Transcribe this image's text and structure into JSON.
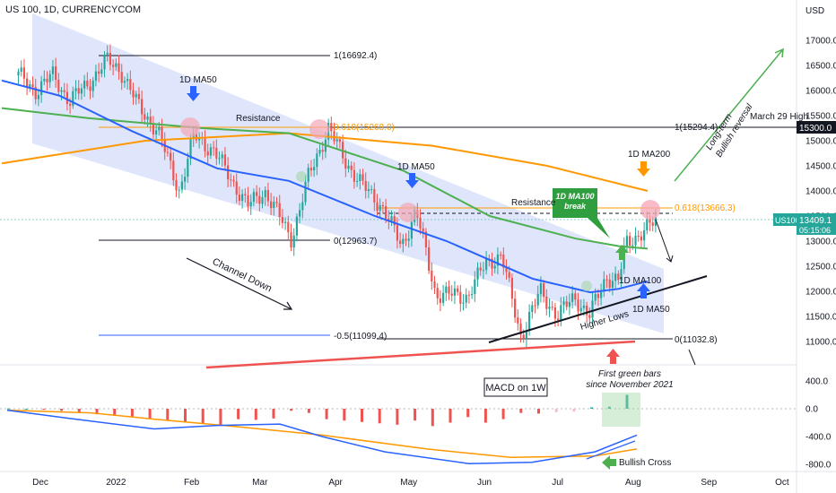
{
  "header": {
    "title": "US 100, 1D, CURRENCYCOM"
  },
  "axis": {
    "currency": "USD",
    "price_ticks": [
      "17000.0",
      "16500.0",
      "16000.0",
      "15500.0",
      "15000.0",
      "14500.0",
      "14000.0",
      "13500.0",
      "13000.0",
      "12500.0",
      "12000.0",
      "11500.0",
      "11000.0"
    ],
    "macd_ticks": [
      "400.0",
      "0.0",
      "-400.0",
      "-800.0"
    ],
    "x_ticks": [
      "Dec",
      "2022",
      "Feb",
      "Mar",
      "Apr",
      "May",
      "Jun",
      "Jul",
      "Aug",
      "Sep",
      "Oct"
    ]
  },
  "labels": {
    "symbol_tag": "US100",
    "last_price": "13409.1",
    "countdown": "05:15:06",
    "level_tag": "15300.0",
    "march_high": "March 29 High",
    "fib_1a": "1(16692.4)",
    "fib_0618a": "0.618(15268.0)",
    "fib_1b": "1(15294.4)",
    "fib_0a": "0(12963.7)",
    "fib_0618b": "0.618(13666.3)",
    "fib_neg05": "-0.5(11099.4)",
    "fib_0b": "0(11032.8)",
    "ma50_a": "1D MA50",
    "ma50_b": "1D MA50",
    "ma50_c": "1D MA50",
    "ma200": "1D MA200",
    "ma100": "1D MA100",
    "resistance_a": "Resistance",
    "resistance_b": "Resistance",
    "channel": "Channel Down",
    "higher_lows": "Higher Lows",
    "ma100_break_1": "1D MA100",
    "ma100_break_2": "break",
    "reversal_1": "Long-term",
    "reversal_2": "Bullish reversal",
    "macd": "MACD on 1W",
    "green_1": "First green bars",
    "green_2": "since November 2021",
    "bullish_cross": "Bullish Cross"
  },
  "colors": {
    "up": "#26a69a",
    "down": "#ef5350",
    "ma50": "#2962ff",
    "ma100": "#4caf50",
    "ma200": "#ff9800",
    "channel": "#d9e2fb",
    "macd_line": "#2962ff",
    "signal_line": "#ff9800"
  },
  "chart_data": {
    "type": "candlestick",
    "y_range": [
      10600,
      17500
    ],
    "anchors": [
      {
        "date": "2021-11-22",
        "close": 16300
      },
      {
        "date": "2021-11-29",
        "close": 16000
      },
      {
        "date": "2021-12-06",
        "close": 16300
      },
      {
        "date": "2021-12-13",
        "close": 15800
      },
      {
        "date": "2021-12-20",
        "close": 16100
      },
      {
        "date": "2021-12-28",
        "close": 16600
      },
      {
        "date": "2022-01-03",
        "close": 16400
      },
      {
        "date": "2022-01-10",
        "close": 15700
      },
      {
        "date": "2022-01-18",
        "close": 15200
      },
      {
        "date": "2022-01-27",
        "close": 14000
      },
      {
        "date": "2022-02-02",
        "close": 15100
      },
      {
        "date": "2022-02-10",
        "close": 14800
      },
      {
        "date": "2022-02-24",
        "close": 13700
      },
      {
        "date": "2022-03-03",
        "close": 14000
      },
      {
        "date": "2022-03-14",
        "close": 13050
      },
      {
        "date": "2022-03-21",
        "close": 14300
      },
      {
        "date": "2022-03-29",
        "close": 15250
      },
      {
        "date": "2022-04-05",
        "close": 14600
      },
      {
        "date": "2022-04-12",
        "close": 14100
      },
      {
        "date": "2022-04-20",
        "close": 13700
      },
      {
        "date": "2022-04-28",
        "close": 12900
      },
      {
        "date": "2022-05-04",
        "close": 13600
      },
      {
        "date": "2022-05-12",
        "close": 11950
      },
      {
        "date": "2022-05-25",
        "close": 11900
      },
      {
        "date": "2022-06-02",
        "close": 12600
      },
      {
        "date": "2022-06-08",
        "close": 12700
      },
      {
        "date": "2022-06-16",
        "close": 11100
      },
      {
        "date": "2022-06-24",
        "close": 12000
      },
      {
        "date": "2022-07-01",
        "close": 11500
      },
      {
        "date": "2022-07-08",
        "close": 11900
      },
      {
        "date": "2022-07-14",
        "close": 11500
      },
      {
        "date": "2022-07-21",
        "close": 12300
      },
      {
        "date": "2022-07-26",
        "close": 12200
      },
      {
        "date": "2022-07-29",
        "close": 12950
      },
      {
        "date": "2022-08-05",
        "close": 13200
      },
      {
        "date": "2022-08-11",
        "close": 13409
      }
    ],
    "ma50": [
      [
        0,
        16200
      ],
      [
        20,
        15900
      ],
      [
        45,
        15200
      ],
      [
        75,
        14450
      ],
      [
        100,
        14200
      ],
      [
        130,
        13500
      ],
      [
        155,
        13000
      ],
      [
        185,
        12250
      ],
      [
        205,
        11980
      ],
      [
        215,
        12050
      ],
      [
        225,
        12200
      ]
    ],
    "ma100": [
      [
        0,
        15650
      ],
      [
        30,
        15450
      ],
      [
        70,
        15250
      ],
      [
        100,
        15150
      ],
      [
        140,
        14400
      ],
      [
        170,
        13500
      ],
      [
        200,
        13050
      ],
      [
        215,
        12900
      ],
      [
        225,
        12850
      ]
    ],
    "ma200": [
      [
        0,
        14550
      ],
      [
        50,
        15000
      ],
      [
        100,
        15150
      ],
      [
        150,
        14900
      ],
      [
        190,
        14500
      ],
      [
        225,
        14000
      ]
    ],
    "macd_histogram": [
      5,
      0,
      -15,
      -30,
      -55,
      -80,
      -100,
      -120,
      -140,
      -170,
      -200,
      -220,
      -240,
      -150,
      -160,
      -140,
      -30,
      -60,
      -150,
      -170,
      -190,
      -210,
      -230,
      -170,
      -250,
      -200,
      -120,
      -200,
      -150,
      -60,
      -70,
      -50,
      -40,
      20,
      30,
      200
    ],
    "macd_line": [
      [
        0,
        -20
      ],
      [
        6,
        -140
      ],
      [
        14,
        -290
      ],
      [
        20,
        -240
      ],
      [
        26,
        -220
      ],
      [
        30,
        -400
      ],
      [
        36,
        -620
      ],
      [
        44,
        -790
      ],
      [
        50,
        -770
      ],
      [
        56,
        -620
      ],
      [
        60,
        -380
      ]
    ],
    "signal_line": [
      [
        0,
        -20
      ],
      [
        8,
        -60
      ],
      [
        14,
        -150
      ],
      [
        22,
        -260
      ],
      [
        30,
        -380
      ],
      [
        40,
        -580
      ],
      [
        48,
        -700
      ],
      [
        56,
        -680
      ],
      [
        60,
        -580
      ]
    ]
  }
}
